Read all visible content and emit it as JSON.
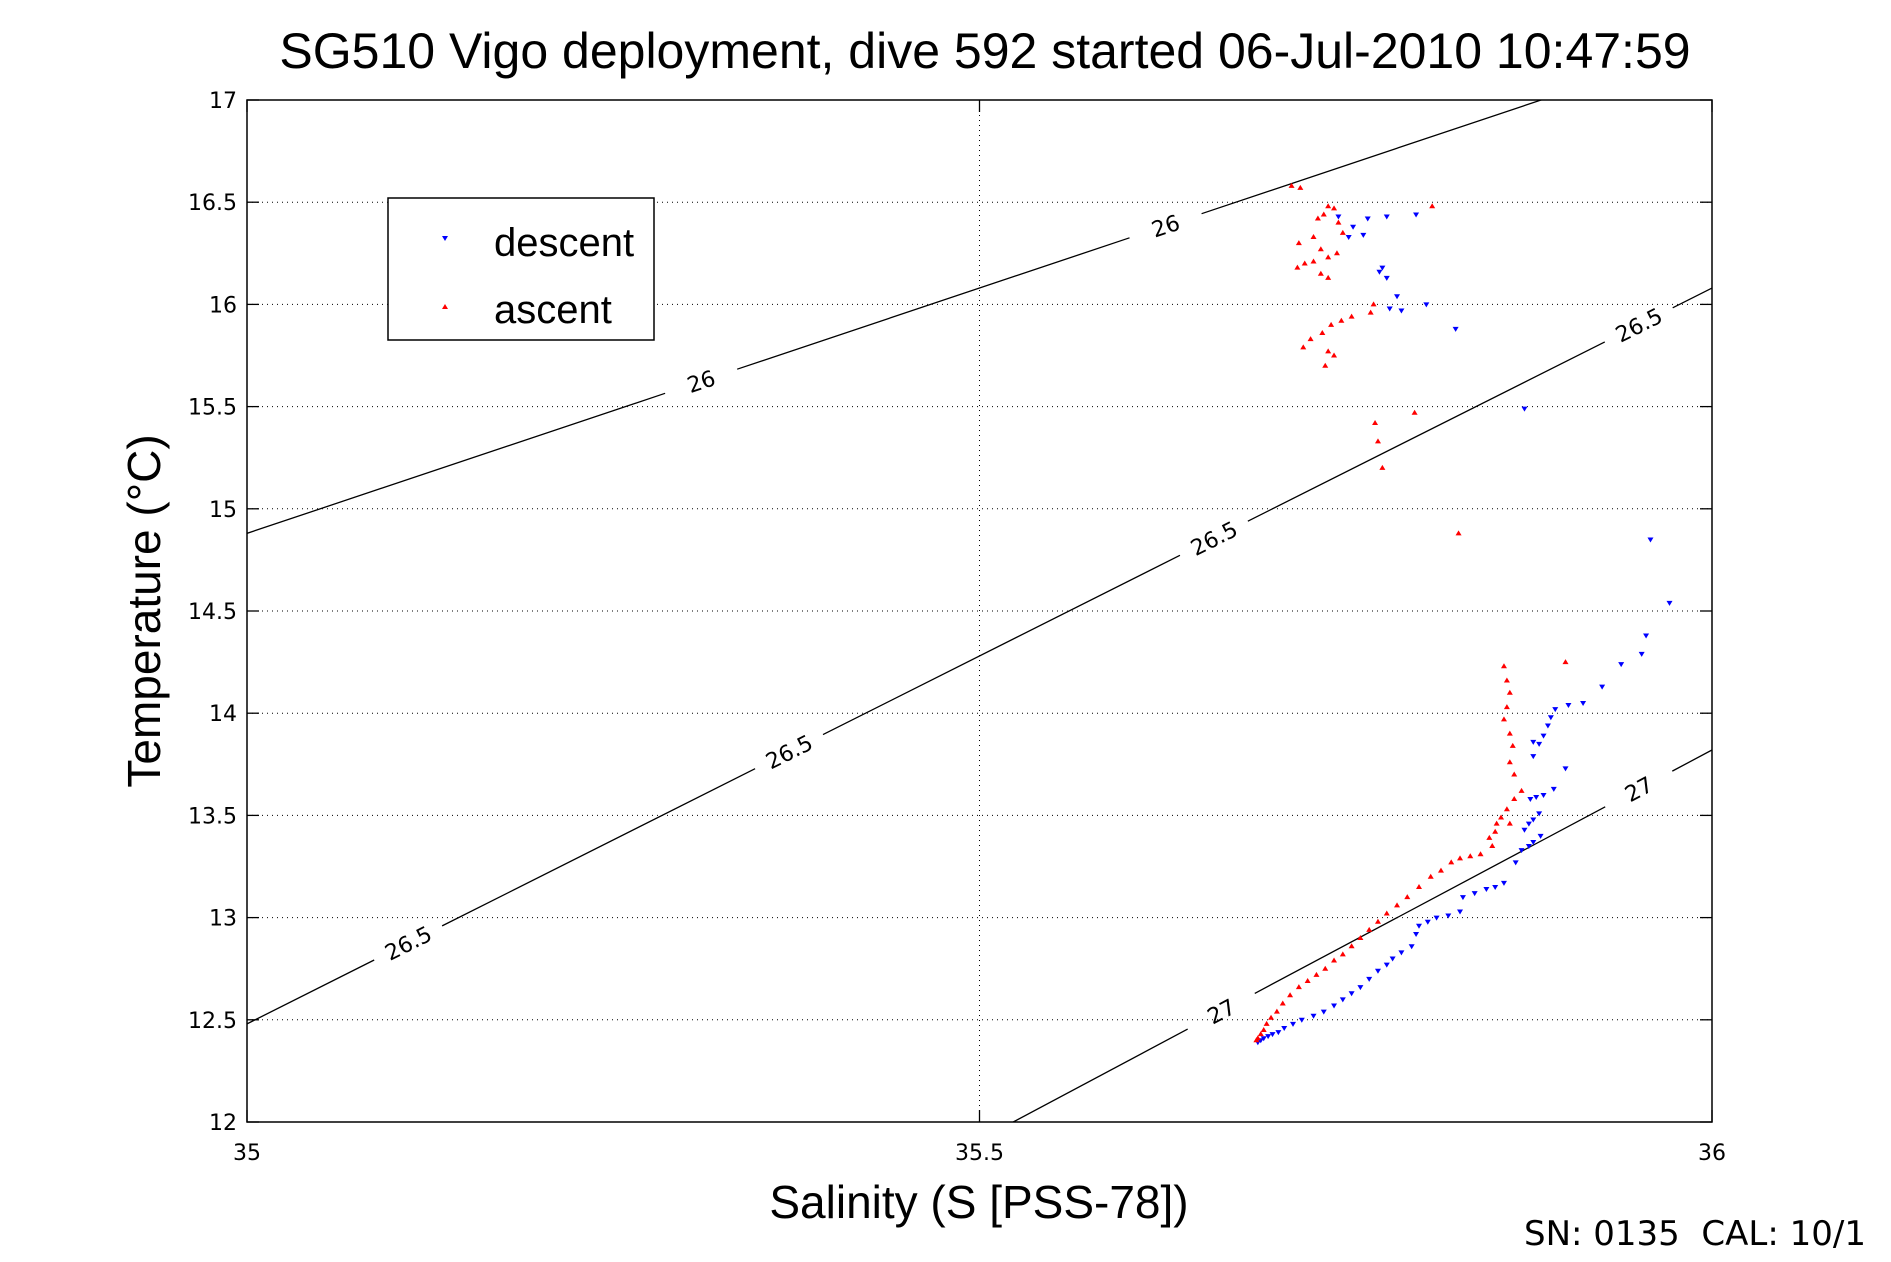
{
  "chart_data": {
    "type": "scatter",
    "title": "SG510 Vigo deployment, dive 592 started 06-Jul-2010 10:47:59",
    "xlabel": "Salinity (S [PSS-78])",
    "ylabel": "Temperature (°C)",
    "xlim": [
      35,
      36
    ],
    "ylim": [
      12,
      17
    ],
    "xticks": [
      "35",
      "35.5",
      "36"
    ],
    "yticks": [
      "12",
      "12.5",
      "13",
      "13.5",
      "14",
      "14.5",
      "15",
      "15.5",
      "16",
      "16.5",
      "17"
    ],
    "grid": true,
    "legend_position": "upper-left",
    "footer": "SN: 0135  CAL: 10/1",
    "contours": [
      {
        "label": "26",
        "points": [
          [
            35.0,
            14.88
          ],
          [
            36.0,
            17.28
          ]
        ],
        "label_positions": [
          [
            35.627,
            16.92
          ],
          [
            35.31,
            15.93
          ]
        ]
      },
      {
        "label": "26.5",
        "points": [
          [
            35.0,
            12.48
          ],
          [
            36.0,
            16.08
          ]
        ],
        "label_positions": [
          [
            35.11,
            12.78
          ],
          [
            35.37,
            13.75
          ],
          [
            35.66,
            14.83
          ],
          [
            35.95,
            15.88
          ]
        ]
      },
      {
        "label": "27",
        "points": [
          [
            35.523,
            12.0
          ],
          [
            36.0,
            13.82
          ]
        ],
        "label_positions": [
          [
            35.665,
            12.54
          ],
          [
            35.95,
            13.62
          ]
        ]
      }
    ],
    "series": [
      {
        "name": "descent",
        "color": "#0000ff",
        "marker": "triangle-down",
        "points": [
          [
            35.745,
            16.43
          ],
          [
            35.755,
            16.38
          ],
          [
            35.752,
            16.33
          ],
          [
            35.765,
            16.42
          ],
          [
            35.778,
            16.43
          ],
          [
            35.798,
            16.44
          ],
          [
            35.762,
            16.34
          ],
          [
            35.775,
            16.18
          ],
          [
            35.778,
            16.13
          ],
          [
            35.773,
            16.16
          ],
          [
            35.785,
            16.04
          ],
          [
            35.78,
            15.98
          ],
          [
            35.788,
            15.97
          ],
          [
            35.805,
            16.0
          ],
          [
            35.825,
            15.88
          ],
          [
            35.872,
            15.49
          ],
          [
            35.958,
            14.85
          ],
          [
            35.971,
            14.54
          ],
          [
            35.955,
            14.38
          ],
          [
            35.952,
            14.29
          ],
          [
            35.938,
            14.24
          ],
          [
            35.925,
            14.13
          ],
          [
            35.912,
            14.05
          ],
          [
            35.902,
            14.04
          ],
          [
            35.893,
            14.02
          ],
          [
            35.89,
            13.98
          ],
          [
            35.888,
            13.94
          ],
          [
            35.885,
            13.89
          ],
          [
            35.882,
            13.85
          ],
          [
            35.878,
            13.79
          ],
          [
            35.878,
            13.86
          ],
          [
            35.9,
            13.73
          ],
          [
            35.892,
            13.63
          ],
          [
            35.885,
            13.6
          ],
          [
            35.88,
            13.59
          ],
          [
            35.876,
            13.58
          ],
          [
            35.882,
            13.51
          ],
          [
            35.878,
            13.48
          ],
          [
            35.875,
            13.46
          ],
          [
            35.872,
            13.43
          ],
          [
            35.883,
            13.4
          ],
          [
            35.878,
            13.37
          ],
          [
            35.875,
            13.35
          ],
          [
            35.87,
            13.33
          ],
          [
            35.866,
            13.27
          ],
          [
            35.858,
            13.17
          ],
          [
            35.852,
            13.15
          ],
          [
            35.846,
            13.14
          ],
          [
            35.838,
            13.12
          ],
          [
            35.83,
            13.1
          ],
          [
            35.828,
            13.03
          ],
          [
            35.82,
            13.01
          ],
          [
            35.812,
            13.0
          ],
          [
            35.806,
            12.98
          ],
          [
            35.8,
            12.96
          ],
          [
            35.798,
            12.92
          ],
          [
            35.795,
            12.86
          ],
          [
            35.788,
            12.83
          ],
          [
            35.782,
            12.8
          ],
          [
            35.778,
            12.77
          ],
          [
            35.772,
            12.74
          ],
          [
            35.766,
            12.7
          ],
          [
            35.76,
            12.66
          ],
          [
            35.754,
            12.63
          ],
          [
            35.748,
            12.6
          ],
          [
            35.742,
            12.57
          ],
          [
            35.735,
            12.54
          ],
          [
            35.728,
            12.52
          ],
          [
            35.72,
            12.5
          ],
          [
            35.714,
            12.48
          ],
          [
            35.708,
            12.46
          ],
          [
            35.704,
            12.44
          ],
          [
            35.7,
            12.43
          ],
          [
            35.697,
            12.42
          ],
          [
            35.694,
            12.41
          ],
          [
            35.692,
            12.4
          ],
          [
            35.69,
            12.39
          ]
        ]
      },
      {
        "name": "ascent",
        "color": "#ff0000",
        "marker": "triangle-up",
        "points": [
          [
            35.713,
            16.58
          ],
          [
            35.719,
            16.57
          ],
          [
            35.738,
            16.48
          ],
          [
            35.742,
            16.47
          ],
          [
            35.735,
            16.44
          ],
          [
            35.731,
            16.42
          ],
          [
            35.745,
            16.4
          ],
          [
            35.748,
            16.35
          ],
          [
            35.728,
            16.33
          ],
          [
            35.718,
            16.3
          ],
          [
            35.733,
            16.27
          ],
          [
            35.744,
            16.25
          ],
          [
            35.738,
            16.23
          ],
          [
            35.728,
            16.21
          ],
          [
            35.722,
            16.2
          ],
          [
            35.717,
            16.18
          ],
          [
            35.733,
            16.15
          ],
          [
            35.738,
            16.13
          ],
          [
            35.809,
            16.48
          ],
          [
            35.769,
            16.0
          ],
          [
            35.767,
            15.96
          ],
          [
            35.754,
            15.94
          ],
          [
            35.747,
            15.92
          ],
          [
            35.74,
            15.9
          ],
          [
            35.734,
            15.86
          ],
          [
            35.726,
            15.83
          ],
          [
            35.721,
            15.79
          ],
          [
            35.738,
            15.77
          ],
          [
            35.742,
            15.75
          ],
          [
            35.736,
            15.7
          ],
          [
            35.797,
            15.47
          ],
          [
            35.77,
            15.42
          ],
          [
            35.772,
            15.33
          ],
          [
            35.775,
            15.2
          ],
          [
            35.827,
            14.88
          ],
          [
            35.858,
            14.23
          ],
          [
            35.86,
            14.16
          ],
          [
            35.862,
            14.1
          ],
          [
            35.86,
            14.03
          ],
          [
            35.858,
            13.97
          ],
          [
            35.862,
            13.9
          ],
          [
            35.864,
            13.84
          ],
          [
            35.862,
            13.76
          ],
          [
            35.865,
            13.7
          ],
          [
            35.87,
            13.62
          ],
          [
            35.865,
            13.58
          ],
          [
            35.86,
            13.53
          ],
          [
            35.856,
            13.49
          ],
          [
            35.853,
            13.46
          ],
          [
            35.862,
            13.46
          ],
          [
            35.852,
            13.42
          ],
          [
            35.848,
            13.39
          ],
          [
            35.9,
            14.25
          ],
          [
            35.85,
            13.35
          ],
          [
            35.842,
            13.31
          ],
          [
            35.835,
            13.3
          ],
          [
            35.828,
            13.29
          ],
          [
            35.822,
            13.27
          ],
          [
            35.815,
            13.23
          ],
          [
            35.808,
            13.2
          ],
          [
            35.8,
            13.15
          ],
          [
            35.792,
            13.1
          ],
          [
            35.785,
            13.06
          ],
          [
            35.778,
            13.02
          ],
          [
            35.772,
            12.98
          ],
          [
            35.766,
            12.94
          ],
          [
            35.76,
            12.9
          ],
          [
            35.754,
            12.86
          ],
          [
            35.748,
            12.82
          ],
          [
            35.742,
            12.79
          ],
          [
            35.736,
            12.75
          ],
          [
            35.73,
            12.72
          ],
          [
            35.724,
            12.69
          ],
          [
            35.718,
            12.66
          ],
          [
            35.712,
            12.62
          ],
          [
            35.707,
            12.58
          ],
          [
            35.703,
            12.54
          ],
          [
            35.699,
            12.51
          ],
          [
            35.696,
            12.48
          ],
          [
            35.694,
            12.45
          ],
          [
            35.692,
            12.43
          ],
          [
            35.69,
            12.41
          ],
          [
            35.689,
            12.4
          ]
        ]
      }
    ]
  }
}
